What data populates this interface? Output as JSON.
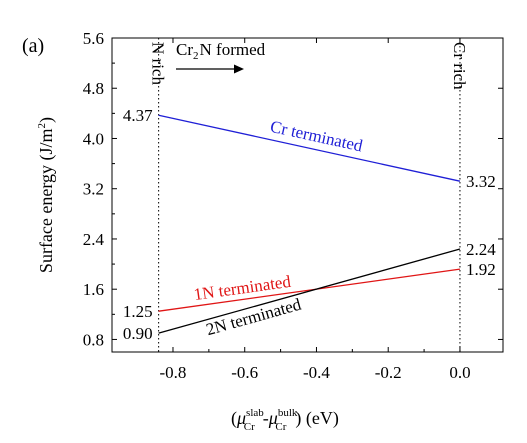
{
  "panel_label": "(a)",
  "chart_data": {
    "type": "line",
    "xlabel_parts": {
      "open": "(",
      "mu": "μ",
      "sub": "Cr",
      "sup1": "slab",
      "minus": "-",
      "sup2": "bulk",
      "close": ") (eV)"
    },
    "ylabel": "Surface energy (J/m",
    "ylabel_sup": "2",
    "ylabel_close": ")",
    "xlim": [
      -0.97,
      0.12
    ],
    "ylim": [
      0.6,
      5.6
    ],
    "xticks": [
      -0.8,
      -0.6,
      -0.4,
      -0.2,
      0.0
    ],
    "xtick_labels": [
      "-0.8",
      "-0.6",
      "-0.4",
      "-0.2",
      "0.0"
    ],
    "yticks": [
      0.8,
      1.6,
      2.4,
      3.2,
      4.0,
      4.8,
      5.6
    ],
    "ytick_labels": [
      "0.8",
      "1.6",
      "2.4",
      "3.2",
      "4.0",
      "4.8",
      "5.6"
    ],
    "series": [
      {
        "name": "Cr terminated",
        "color": "#1f1fd6",
        "x": [
          -0.84,
          0.0
        ],
        "y": [
          4.37,
          3.32
        ],
        "start_label": "4.37",
        "end_label": "3.32"
      },
      {
        "name": "1N terminated",
        "color": "#e01515",
        "x": [
          -0.84,
          0.0
        ],
        "y": [
          1.25,
          1.92
        ],
        "start_label": "1.25",
        "end_label": "1.92"
      },
      {
        "name": "2N terminated",
        "color": "#000000",
        "x": [
          -0.84,
          0.0
        ],
        "y": [
          0.9,
          2.24
        ],
        "start_label": "0.90",
        "end_label": "2.24"
      }
    ],
    "vlines": [
      {
        "x": -0.84,
        "label": "N rich"
      },
      {
        "x": 0.0,
        "label": "Cr rich"
      }
    ],
    "annotation": {
      "text_main": "Cr",
      "text_sub": "2",
      "text_rest": "N formed",
      "arrow": "right"
    }
  }
}
